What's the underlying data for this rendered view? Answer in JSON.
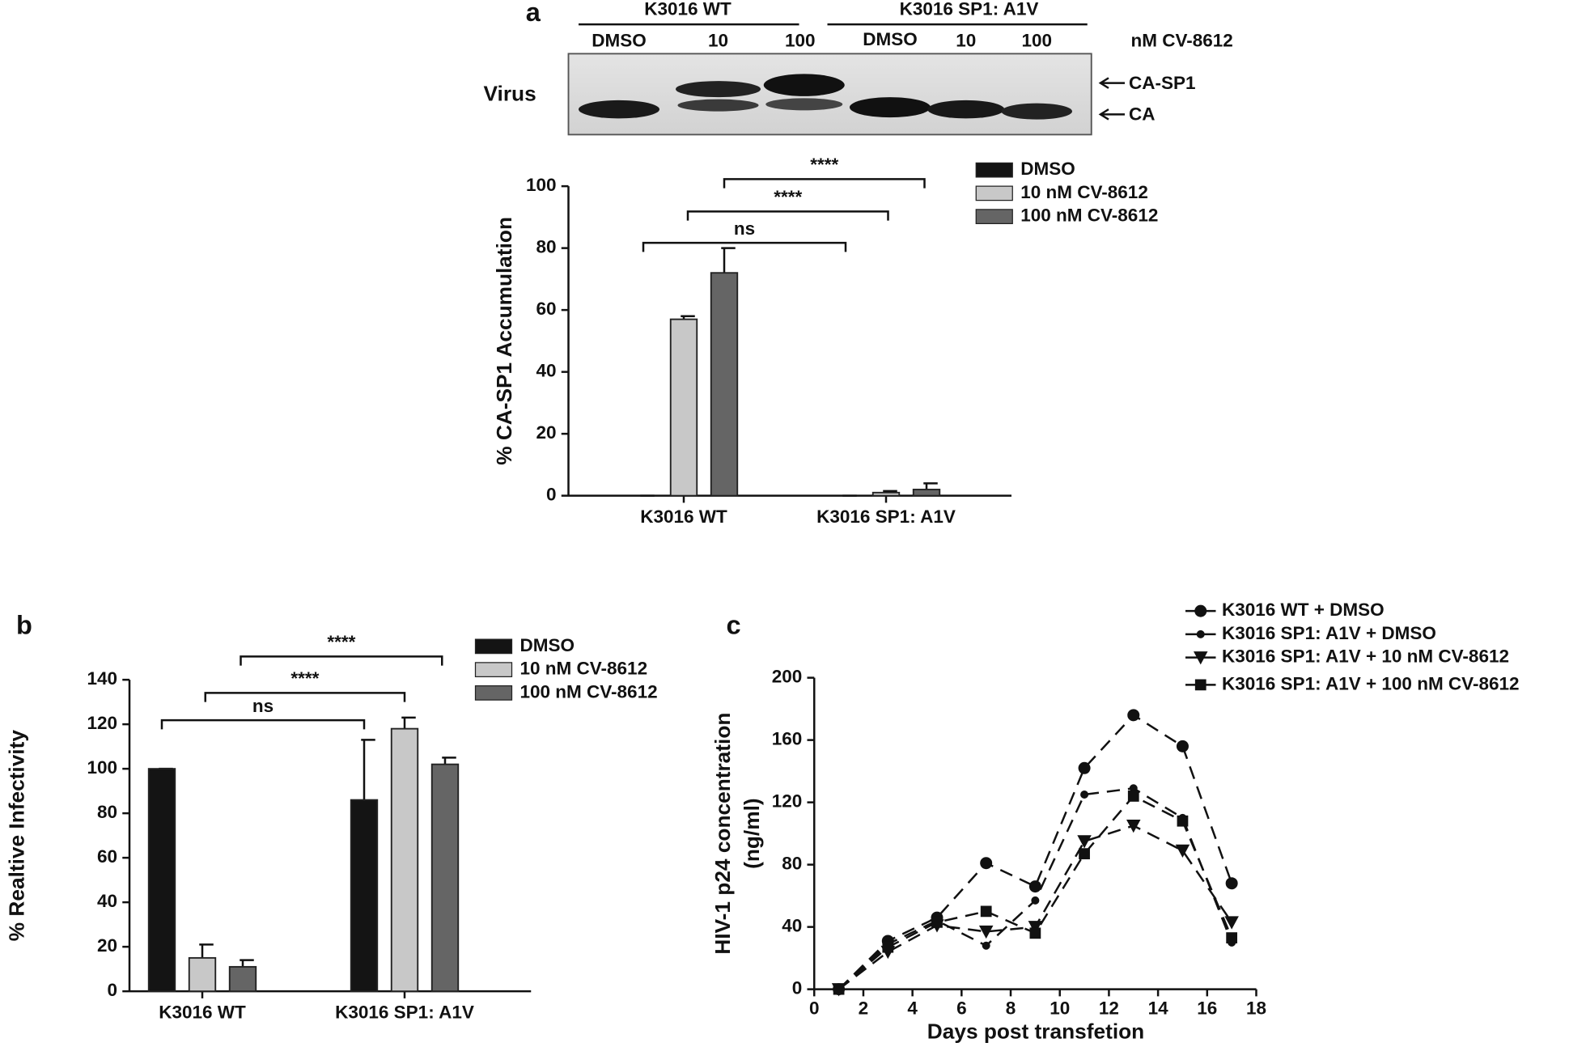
{
  "blot": {
    "panel": "a",
    "groups": [
      "K3016 WT",
      "K3016  SP1: A1V"
    ],
    "lanes": [
      "DMSO",
      "10",
      "100",
      "DMSO",
      "10",
      "100"
    ],
    "unit": "nM CV-8612",
    "sample": "Virus",
    "bands": [
      "CA-SP1",
      "CA"
    ]
  },
  "chart_data": [
    {
      "type": "bar",
      "y_label": "% CA-SP1 Accumulation",
      "categories": [
        "K3016 WT",
        "K3016 SP1: A1V"
      ],
      "series": [
        {
          "name": "DMSO",
          "color": "#141414",
          "values": [
            0,
            0
          ],
          "errors": [
            0,
            0
          ]
        },
        {
          "name": "10 nM CV-8612",
          "color": "#c8c8c8",
          "values": [
            57,
            1
          ],
          "errors": [
            1,
            0.5
          ]
        },
        {
          "name": "100 nM CV-8612",
          "color": "#656565",
          "values": [
            72,
            2
          ],
          "errors": [
            8,
            2
          ]
        }
      ],
      "ylim": [
        0,
        100
      ],
      "yticks": [
        0,
        20,
        40,
        60,
        80,
        100
      ],
      "annotations": [
        "ns",
        "****",
        "****"
      ]
    },
    {
      "type": "bar",
      "panel": "b",
      "y_label": "% Realtive Infectivity",
      "categories": [
        "K3016 WT",
        "K3016 SP1: A1V"
      ],
      "series": [
        {
          "name": "DMSO",
          "color": "#141414",
          "values": [
            100,
            86
          ],
          "errors": [
            0,
            27
          ]
        },
        {
          "name": "10 nM CV-8612",
          "color": "#c8c8c8",
          "values": [
            15,
            118
          ],
          "errors": [
            6,
            5
          ]
        },
        {
          "name": "100 nM CV-8612",
          "color": "#656565",
          "values": [
            11,
            102
          ],
          "errors": [
            3,
            3
          ]
        }
      ],
      "ylim": [
        0,
        140
      ],
      "yticks": [
        0,
        20,
        40,
        60,
        80,
        100,
        120,
        140
      ],
      "annotations": [
        "ns",
        "****",
        "****"
      ]
    },
    {
      "type": "line",
      "panel": "c",
      "y_label": [
        "HIV-1 p24 concentration",
        "(ng/ml)"
      ],
      "x_label": "Days post transfetion",
      "x": [
        1,
        3,
        5,
        7,
        9,
        11,
        13,
        15,
        17
      ],
      "series": [
        {
          "name": "K3016 WT + DMSO",
          "color": "#111111",
          "marker": "circle",
          "values": [
            0,
            31,
            46,
            81,
            66,
            142,
            176,
            156,
            68
          ]
        },
        {
          "name": "K3016 SP1: A1V + DMSO",
          "color": "#111111",
          "marker": "dot",
          "values": [
            0,
            29,
            44,
            28,
            57,
            125,
            129,
            110,
            30
          ]
        },
        {
          "name": "K3016 SP1: A1V + 10 nM CV-8612",
          "color": "#111111",
          "marker": "triangle-down",
          "values": [
            0,
            24,
            41,
            37,
            40,
            95,
            105,
            89,
            43
          ]
        },
        {
          "name": "K3016 SP1: A1V + 100 nM CV-8612",
          "color": "#111111",
          "marker": "square",
          "values": [
            0,
            27,
            43,
            50,
            36,
            87,
            124,
            108,
            33
          ]
        }
      ],
      "xlim": [
        0,
        18
      ],
      "xticks": [
        0,
        2,
        4,
        6,
        8,
        10,
        12,
        14,
        16,
        18
      ],
      "ylim": [
        0,
        200
      ],
      "yticks": [
        0,
        40,
        80,
        120,
        160,
        200
      ]
    }
  ]
}
